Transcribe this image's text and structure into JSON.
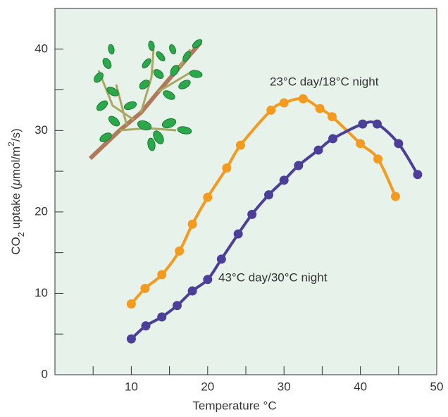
{
  "chart_data": {
    "type": "scatter",
    "xlabel": "Temperature °C",
    "ylabel": [
      "CO",
      "2",
      " uptake (",
      "μ",
      "mol/m",
      "2",
      "/s)"
    ],
    "xlim": [
      0,
      50
    ],
    "ylim": [
      0,
      45
    ],
    "xticks": [
      10,
      20,
      30,
      40,
      50
    ],
    "xminor_ticks": [
      5,
      15,
      25,
      35,
      45
    ],
    "yticks": [
      0,
      10,
      20,
      30,
      40
    ],
    "yminor_ticks": [
      5,
      15,
      25,
      35
    ],
    "background": "#e6f2ea",
    "series": [
      {
        "name": "23°C day/18°C night",
        "color": "#f39a1f",
        "x": [
          10,
          11.8,
          14,
          16.3,
          18,
          20,
          22.5,
          24.3,
          28.3,
          30,
          32.5,
          34.7,
          36.3,
          40,
          42.3,
          44.6
        ],
        "values": [
          8.7,
          10.6,
          12.3,
          15.2,
          18.5,
          21.8,
          25.4,
          28.2,
          32.5,
          33.4,
          33.9,
          32.7,
          31.7,
          28.4,
          26.5,
          21.9
        ]
      },
      {
        "name": "43°C day/30°C night",
        "color": "#4b3f9a",
        "x": [
          10,
          11.9,
          14,
          16,
          18,
          20,
          21.8,
          24,
          25.8,
          28,
          30,
          31.9,
          34.5,
          36.4,
          40.3,
          42.2,
          45,
          47.5
        ],
        "values": [
          4.4,
          6.0,
          7.1,
          8.5,
          10.3,
          11.7,
          14.2,
          17.3,
          19.7,
          22.1,
          23.9,
          25.7,
          27.6,
          29.0,
          30.8,
          30.8,
          28.4,
          24.6
        ]
      }
    ]
  }
}
